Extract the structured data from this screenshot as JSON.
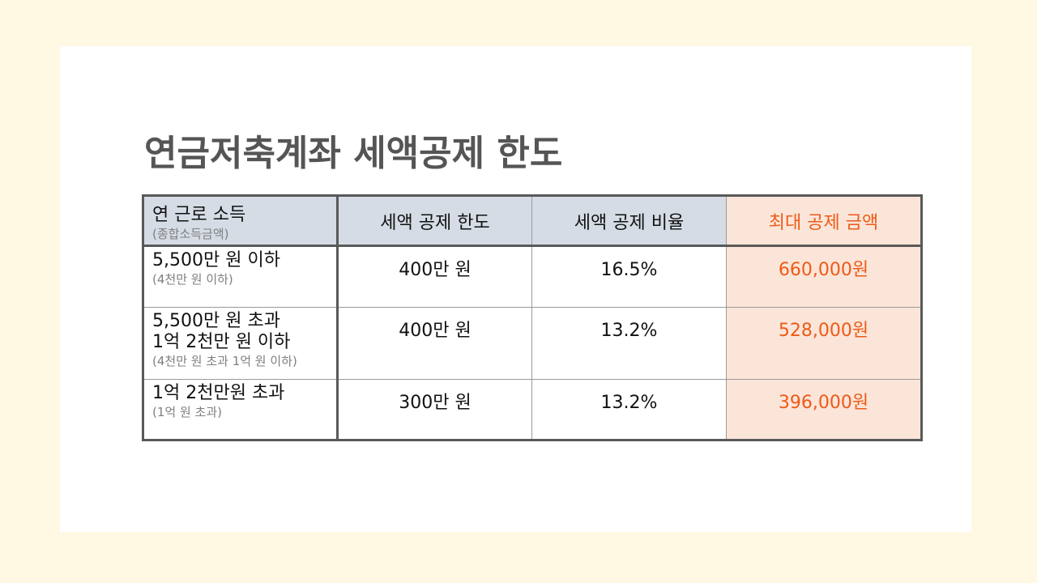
{
  "title": "연금저축계좌 세액공제 한도",
  "table": {
    "headers": {
      "income": "연 근로 소득",
      "income_sub": "(종합소득금액)",
      "limit": "세액 공제 한도",
      "rate": "세액 공제 비율",
      "max": "최대 공제 금액"
    },
    "rows": [
      {
        "income_lines": [
          "5,500만 원 이하"
        ],
        "income_sub": "(4천만 원 이하)",
        "limit": "400만 원",
        "rate": "16.5%",
        "max": "660,000원"
      },
      {
        "income_lines": [
          "5,500만 원 초과",
          "1억 2천만 원 이하"
        ],
        "income_sub": "(4천만 원 초과 1억 원 이하)",
        "limit": "400만 원",
        "rate": "13.2%",
        "max": "528,000원"
      },
      {
        "income_lines": [
          "1억 2천만원 초과"
        ],
        "income_sub": "(1억 원 초과)",
        "limit": "300만 원",
        "rate": "13.2%",
        "max": "396,000원"
      }
    ]
  },
  "colors": {
    "background": "#fff8e3",
    "header_fill": "#d5dce5",
    "accent_fill": "#fbe5d8",
    "accent_text": "#ed5a18",
    "title_text": "#555555"
  }
}
